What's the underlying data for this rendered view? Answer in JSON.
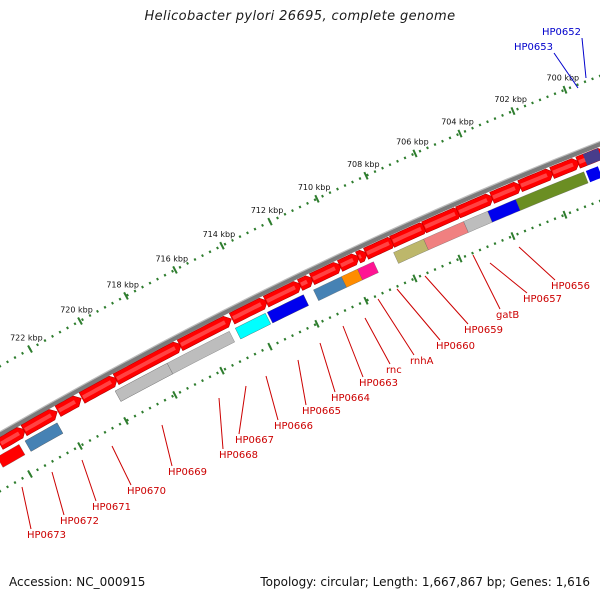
{
  "title": "Helicobacter pylori 26695, complete genome",
  "footer": {
    "accession": "Accession: NC_000915",
    "summary": "Topology: circular; Length: 1,667,867 bp; Genes: 1,616"
  },
  "colors": {
    "backbone": "#808080",
    "forward_feature": "#ff0000",
    "tick": "#2e7d2e",
    "label_forward": "#0000cc",
    "label_reverse": "#cc0000"
  },
  "scale_labels": [
    "700 kbp",
    "702 kbp",
    "704 kbp",
    "706 kbp",
    "708 kbp",
    "710 kbp",
    "712 kbp",
    "714 kbp",
    "716 kbp",
    "718 kbp",
    "720 kbp",
    "722 kbp"
  ],
  "forward_labels": [
    "HP0652",
    "HP0653"
  ],
  "reverse_labels": [
    "HP0656",
    "gatB",
    "HP0657",
    "HP0659",
    "HP0660",
    "rnhA",
    "rnc",
    "HP0663",
    "HP0664",
    "HP0665",
    "HP0666",
    "HP0667",
    "HP0668",
    "HP0669",
    "HP0670",
    "HP0671",
    "HP0672",
    "HP0673"
  ],
  "reverse_colors": {
    "HP0656": "#6b8e23",
    "gatB": "#0000ee",
    "HP0657": "#bdbdbd",
    "HP0659": "#f08080",
    "HP0660": "#bdb76b",
    "rnhA": "#ff1493",
    "rnc": "#ff8c00",
    "HP0663": "#4682b4",
    "HP0664": "#0000ee",
    "HP0665": "#0000ee",
    "HP0666": "#00ffff",
    "HP0667": "#00ffff",
    "HP0668": "#bdbdbd",
    "HP0669": "#bdbdbd",
    "HP0670": "#bdbdbd",
    "HP0671": "#4682b4",
    "HP0672": "#4682b4",
    "HP0673": "#ff0000"
  }
}
